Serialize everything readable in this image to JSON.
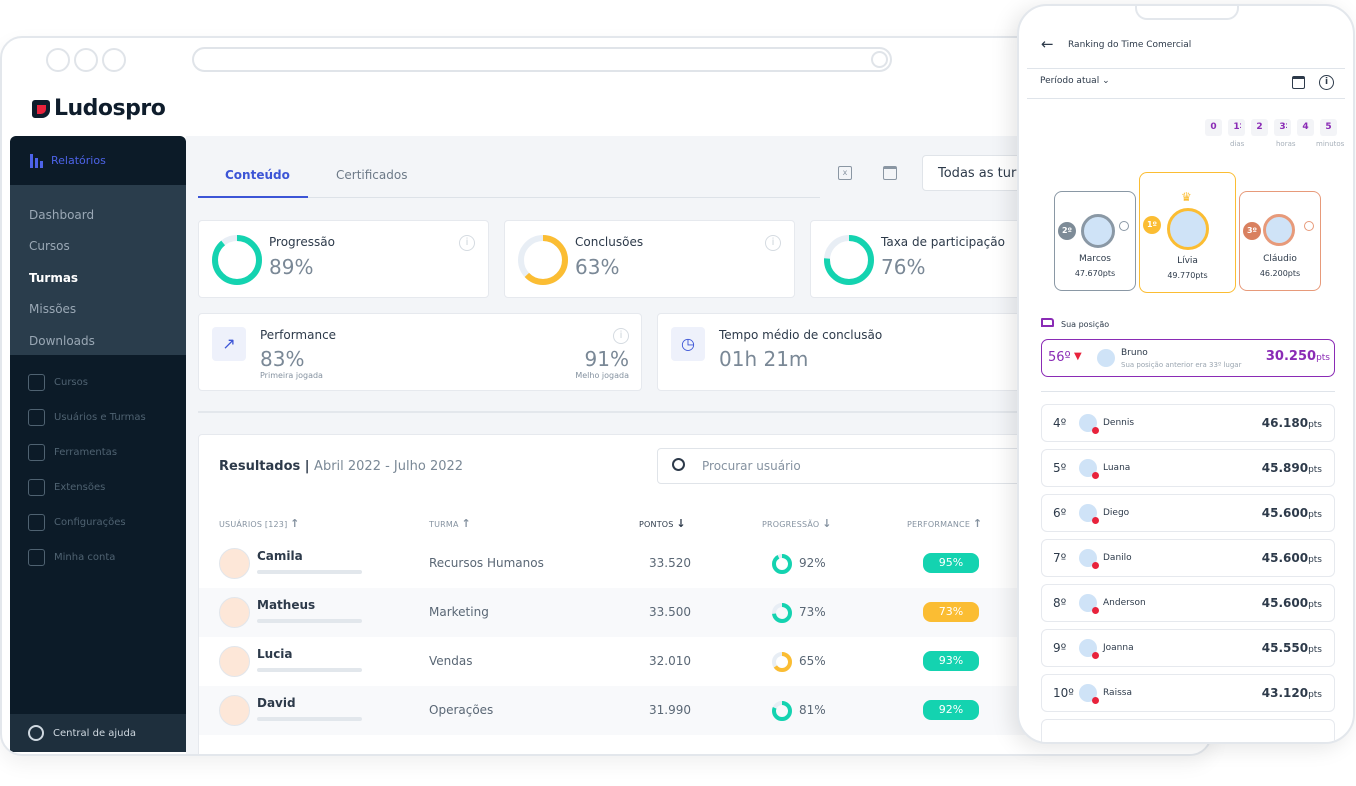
{
  "brand": "Ludospro",
  "sidebar": {
    "section": "Relatórios",
    "submenu": [
      "Dashboard",
      "Cursos",
      "Turmas",
      "Missões",
      "Downloads"
    ],
    "active": "Turmas",
    "menu": [
      {
        "label": "Cursos",
        "icon": "book-icon"
      },
      {
        "label": "Usuários e Turmas",
        "icon": "users-icon"
      },
      {
        "label": "Ferramentas",
        "icon": "star-icon"
      },
      {
        "label": "Extensões",
        "icon": "box-icon"
      },
      {
        "label": "Configurações",
        "icon": "gear-icon"
      },
      {
        "label": "Minha conta",
        "icon": "wallet-icon"
      }
    ],
    "help": "Central de ajuda"
  },
  "tabs": [
    "Conteúdo",
    "Certificados"
  ],
  "filter": "Todas as tur",
  "cards": {
    "progressao": {
      "title": "Progressão",
      "value": "89%",
      "pct": 89,
      "color": "#14d3b0"
    },
    "conclusoes": {
      "title": "Conclusões",
      "value": "63%",
      "pct": 63,
      "color": "#fbbd33"
    },
    "participacao": {
      "title": "Taxa de participação",
      "value": "76%",
      "pct": 76,
      "color": "#14d3b0"
    },
    "performance": {
      "title": "Performance",
      "first": "83%",
      "first_label": "Primeira jogada",
      "best": "91%",
      "best_label": "Melho jogada"
    },
    "tempo": {
      "title": "Tempo médio de conclusão",
      "value": "01h 21m"
    }
  },
  "results": {
    "title": "Resultados |",
    "period": "Abril 2022 - Julho 2022",
    "search_placeholder": "Procurar usuário",
    "columns": [
      "USUÁRIOS [123]",
      "TURMA",
      "PONTOS",
      "PROGRESSÃO",
      "PERFORMANCE"
    ],
    "rows": [
      {
        "name": "Camila",
        "turma": "Recursos Humanos",
        "pontos": "33.520",
        "prog": "92%",
        "prog_pct": 92,
        "prog_color": "#14d3b0",
        "perf": "95%",
        "perf_color": "#14d3b0"
      },
      {
        "name": "Matheus",
        "turma": "Marketing",
        "pontos": "33.500",
        "prog": "73%",
        "prog_pct": 73,
        "prog_color": "#14d3b0",
        "perf": "73%",
        "perf_color": "#fbbd33"
      },
      {
        "name": "Lucia",
        "turma": "Vendas",
        "pontos": "32.010",
        "prog": "65%",
        "prog_pct": 65,
        "prog_color": "#fbbd33",
        "perf": "93%",
        "perf_color": "#14d3b0"
      },
      {
        "name": "David",
        "turma": "Operações",
        "pontos": "31.990",
        "prog": "81%",
        "prog_pct": 81,
        "prog_color": "#14d3b0",
        "perf": "92%",
        "perf_color": "#14d3b0"
      }
    ]
  },
  "phone": {
    "title": "Ranking do Time Comercial",
    "period": "Período atual",
    "timer": {
      "digits": [
        "0",
        "1",
        "2",
        "3",
        "4",
        "5"
      ],
      "labels": [
        "dias",
        "horas",
        "minutos"
      ]
    },
    "podium": [
      {
        "pos": "2º",
        "name": "Marcos",
        "pts": "47.670pts"
      },
      {
        "pos": "1º",
        "name": "Lívia",
        "pts": "49.770pts"
      },
      {
        "pos": "3º",
        "name": "Cláudio",
        "pts": "46.200pts"
      }
    ],
    "my_label": "Sua posição",
    "me": {
      "pos": "56º",
      "name": "Bruno",
      "sub": "Sua posição anterior era 33º lugar",
      "pts": "30.250",
      "unit": "pts"
    },
    "ranking": [
      {
        "pos": "4º",
        "name": "Dennis",
        "pts": "46.180"
      },
      {
        "pos": "5º",
        "name": "Luana",
        "pts": "45.890"
      },
      {
        "pos": "6º",
        "name": "Diego",
        "pts": "45.600"
      },
      {
        "pos": "7º",
        "name": "Danilo",
        "pts": "45.600"
      },
      {
        "pos": "8º",
        "name": "Anderson",
        "pts": "45.600"
      },
      {
        "pos": "9º",
        "name": "Joanna",
        "pts": "45.550"
      },
      {
        "pos": "10º",
        "name": "Raissa",
        "pts": "43.120"
      }
    ],
    "unit": "pts"
  }
}
